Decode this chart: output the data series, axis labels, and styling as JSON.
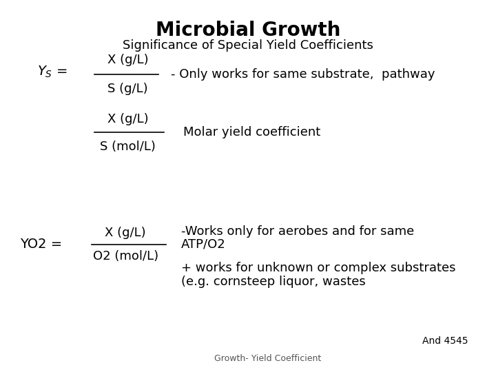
{
  "title": "Microbial Growth",
  "subtitle": "Significance of Special Yield Coefficients",
  "background_color": "#ffffff",
  "text_color": "#000000",
  "title_fontsize": 20,
  "subtitle_fontsize": 13,
  "body_fontsize": 13,
  "footer_text": "And 4545",
  "footer_sub": "Growth- Yield Coefficient",
  "font": "DejaVu Sans"
}
